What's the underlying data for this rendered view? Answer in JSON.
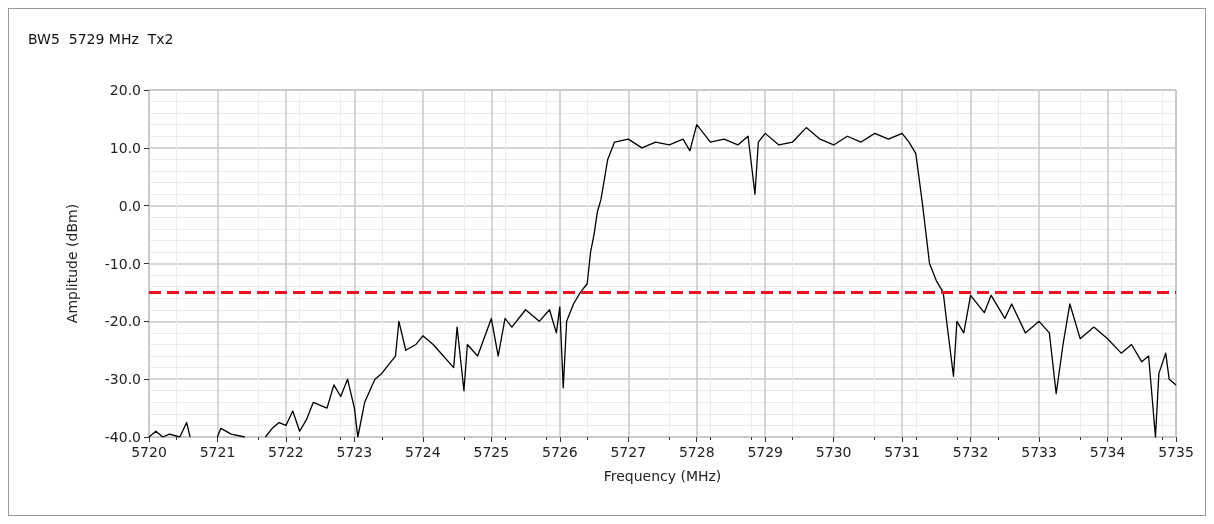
{
  "chart_data": {
    "type": "line",
    "title": "BW5  5729 MHz  Tx2",
    "xlabel": "Frequency (MHz)",
    "ylabel": "Amplitude (dBm)",
    "xlim": [
      5720,
      5735
    ],
    "xticks": [
      5720,
      5721,
      5722,
      5723,
      5724,
      5725,
      5726,
      5727,
      5728,
      5729,
      5730,
      5731,
      5732,
      5733,
      5734,
      5735
    ],
    "ylim": [
      -40,
      20
    ],
    "yticks": [
      {
        "value": -40,
        "label": "-40.0"
      },
      {
        "value": -30,
        "label": "-30.0"
      },
      {
        "value": -20,
        "label": "-20.0"
      },
      {
        "value": -10,
        "label": "-10.0"
      },
      {
        "value": 0,
        "label": "0.0"
      },
      {
        "value": 10,
        "label": "10.0"
      },
      {
        "value": 20,
        "label": "20.0"
      }
    ],
    "grid": true,
    "marker": "none",
    "line_style": "solid",
    "ref_lines": [
      {
        "axis": "y",
        "value": -15,
        "color": "#ee1122",
        "line_style": "dashed"
      }
    ],
    "series": [
      {
        "color": "#000000",
        "x": [
          5720.0,
          5720.1,
          5720.2,
          5720.3,
          5720.45,
          5720.55,
          5720.6,
          5720.8,
          5721.0,
          5721.05,
          5721.2,
          5721.4,
          5721.5,
          5721.7,
          5721.8,
          5721.9,
          5722.0,
          5722.1,
          5722.2,
          5722.3,
          5722.4,
          5722.6,
          5722.7,
          5722.8,
          5722.9,
          5723.0,
          5723.05,
          5723.15,
          5723.3,
          5723.4,
          5723.5,
          5723.6,
          5723.65,
          5723.75,
          5723.9,
          5724.0,
          5724.15,
          5724.3,
          5724.45,
          5724.5,
          5724.6,
          5724.65,
          5724.8,
          5725.0,
          5725.1,
          5725.2,
          5725.3,
          5725.5,
          5725.7,
          5725.85,
          5725.95,
          5726.0,
          5726.05,
          5726.1,
          5726.2,
          5726.3,
          5726.4,
          5726.45,
          5726.5,
          5726.55,
          5726.6,
          5726.7,
          5726.8,
          5727.0,
          5727.2,
          5727.4,
          5727.6,
          5727.8,
          5727.9,
          5728.0,
          5728.2,
          5728.4,
          5728.6,
          5728.75,
          5728.8,
          5728.85,
          5728.9,
          5729.0,
          5729.2,
          5729.4,
          5729.6,
          5729.8,
          5730.0,
          5730.2,
          5730.4,
          5730.6,
          5730.8,
          5731.0,
          5731.1,
          5731.2,
          5731.3,
          5731.4,
          5731.5,
          5731.6,
          5731.65,
          5731.75,
          5731.8,
          5731.9,
          5732.0,
          5732.2,
          5732.3,
          5732.5,
          5732.6,
          5732.8,
          5733.0,
          5733.15,
          5733.25,
          5733.35,
          5733.45,
          5733.6,
          5733.8,
          5734.0,
          5734.2,
          5734.35,
          5734.5,
          5734.6,
          5734.65,
          5734.7,
          5734.75,
          5734.85,
          5734.9,
          5735.0
        ],
        "values": [
          -40,
          -39,
          -40,
          -39.5,
          -40,
          -37.5,
          -40,
          null,
          -40,
          -38.5,
          -39.5,
          -40,
          null,
          -40,
          -38.5,
          -37.5,
          -38,
          -35.5,
          -39,
          -37,
          -34,
          -35,
          -31,
          -33,
          -30,
          -35,
          -40,
          -34,
          -30,
          -29,
          -27.5,
          -26,
          -20,
          -25,
          -24,
          -22.5,
          -24,
          -26,
          -28,
          -21,
          -32,
          -24,
          -26,
          -19.5,
          -26,
          -19.5,
          -21,
          -18,
          -20,
          -18,
          -22,
          -17.5,
          -31.5,
          -20,
          -17,
          -15,
          -13.5,
          -8,
          -5,
          -1,
          1,
          8,
          11,
          11.5,
          10,
          11,
          10.5,
          11.5,
          9.5,
          14,
          11,
          11.5,
          10.5,
          12,
          7,
          2,
          11,
          12.5,
          10.5,
          11,
          13.5,
          11.5,
          10.5,
          12,
          11,
          12.5,
          11.5,
          12.5,
          11,
          9,
          0,
          -10,
          -13,
          -15,
          -20,
          -29.5,
          -20,
          -22,
          -15.5,
          -18.5,
          -15.5,
          -19.5,
          -17,
          -22,
          -20,
          -22,
          -32.5,
          -24,
          -17,
          -23,
          -21,
          -23,
          -25.5,
          -24,
          -27,
          -26,
          -33,
          -40,
          -29,
          -25.5,
          -30,
          -31
        ]
      }
    ]
  }
}
